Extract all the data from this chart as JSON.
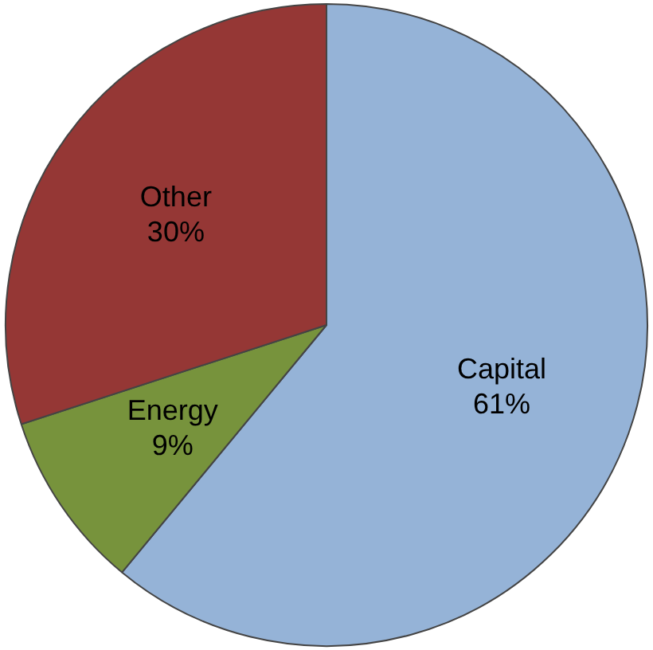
{
  "chart_data": {
    "type": "pie",
    "categories": [
      "Capital",
      "Energy",
      "Other"
    ],
    "values": [
      61,
      9,
      30
    ],
    "colors": [
      "#95b3d7",
      "#77933c",
      "#953735"
    ],
    "value_labels": [
      "61%",
      "9%",
      "30%"
    ],
    "legend": false
  }
}
